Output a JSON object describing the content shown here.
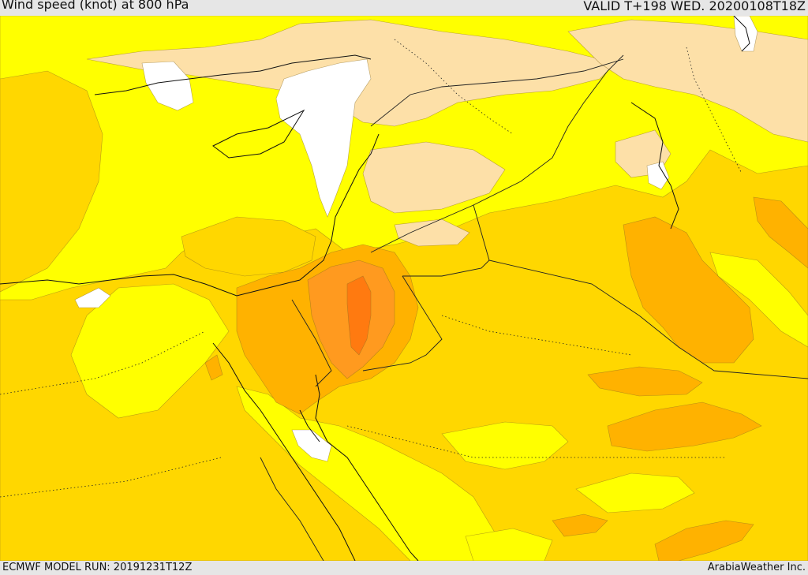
{
  "header": {
    "title": "Wind speed (knot) at 800 hPa",
    "valid": "VALID T+198 WED. 20200108T18Z"
  },
  "footer": {
    "model_run": "ECMWF MODEL RUN: 20191231T12Z",
    "credit": "ArabiaWeather Inc."
  },
  "colors": {
    "calm": "#ffffff",
    "light": "#fde0a8",
    "low": "#ffff00",
    "moderate": "#ffd700",
    "fresh": "#ffb200",
    "strong": "#ff9a1f",
    "very_strong": "#ff7a10",
    "coast": "#111111",
    "border": "#222222"
  }
}
